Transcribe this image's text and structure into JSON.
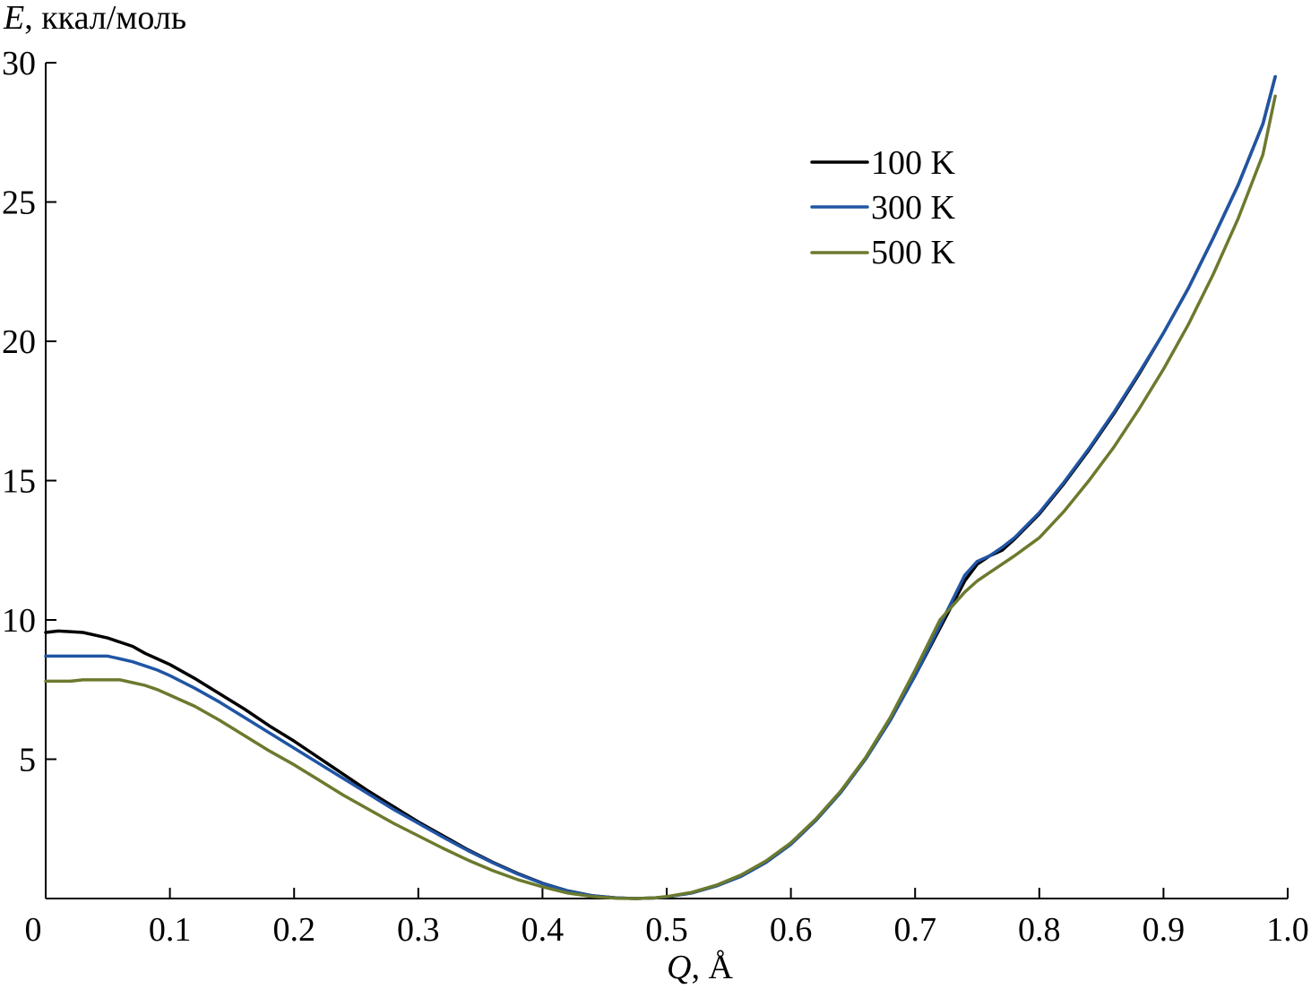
{
  "chart_data": {
    "type": "line",
    "ylabel_var": "E",
    "ylabel_unit": ", ккал/моль",
    "xlabel_var": "Q",
    "xlabel_unit": ", Å",
    "xlim": [
      0,
      1.0
    ],
    "ylim": [
      0,
      30
    ],
    "x_ticks": [
      0,
      0.1,
      0.2,
      0.3,
      0.4,
      0.5,
      0.6,
      0.7,
      0.8,
      0.9,
      1.0
    ],
    "x_tick_labels": [
      "0",
      "0.1",
      "0.2",
      "0.3",
      "0.4",
      "0.5",
      "0.6",
      "0.7",
      "0.8",
      "0.9",
      "1.0"
    ],
    "y_ticks": [
      5,
      10,
      15,
      20,
      25,
      30
    ],
    "y_tick_labels": [
      "5",
      "10",
      "15",
      "20",
      "25",
      "30"
    ],
    "grid": false,
    "legend_position": "top-right",
    "series": [
      {
        "name": "100 K",
        "color": "#000000",
        "x": [
          0.0,
          0.01,
          0.02,
          0.03,
          0.04,
          0.05,
          0.06,
          0.07,
          0.08,
          0.09,
          0.1,
          0.12,
          0.14,
          0.16,
          0.18,
          0.2,
          0.22,
          0.24,
          0.26,
          0.28,
          0.3,
          0.32,
          0.34,
          0.36,
          0.38,
          0.4,
          0.42,
          0.44,
          0.46,
          0.475,
          0.49,
          0.5,
          0.52,
          0.54,
          0.56,
          0.58,
          0.6,
          0.62,
          0.64,
          0.66,
          0.68,
          0.7,
          0.72,
          0.74,
          0.75,
          0.76,
          0.77,
          0.78,
          0.8,
          0.82,
          0.84,
          0.86,
          0.88,
          0.9,
          0.92,
          0.94,
          0.96,
          0.98,
          0.99
        ],
        "y": [
          9.55,
          9.6,
          9.58,
          9.55,
          9.45,
          9.35,
          9.2,
          9.05,
          8.8,
          8.6,
          8.4,
          7.9,
          7.35,
          6.8,
          6.2,
          5.65,
          5.05,
          4.45,
          3.85,
          3.3,
          2.75,
          2.25,
          1.75,
          1.3,
          0.9,
          0.55,
          0.28,
          0.1,
          0.02,
          0.0,
          0.02,
          0.06,
          0.2,
          0.45,
          0.8,
          1.3,
          1.95,
          2.8,
          3.8,
          5.0,
          6.4,
          8.0,
          9.7,
          11.4,
          12.0,
          12.3,
          12.5,
          12.9,
          13.8,
          14.9,
          16.1,
          17.4,
          18.8,
          20.3,
          21.9,
          23.7,
          25.6,
          27.8,
          29.5
        ]
      },
      {
        "name": "300 K",
        "color": "#2055a4",
        "x": [
          0.0,
          0.01,
          0.02,
          0.03,
          0.04,
          0.05,
          0.06,
          0.07,
          0.08,
          0.09,
          0.1,
          0.12,
          0.14,
          0.16,
          0.18,
          0.2,
          0.22,
          0.24,
          0.26,
          0.28,
          0.3,
          0.32,
          0.34,
          0.36,
          0.38,
          0.4,
          0.42,
          0.44,
          0.46,
          0.475,
          0.49,
          0.5,
          0.52,
          0.54,
          0.56,
          0.58,
          0.6,
          0.62,
          0.64,
          0.66,
          0.68,
          0.7,
          0.72,
          0.74,
          0.75,
          0.76,
          0.77,
          0.78,
          0.8,
          0.82,
          0.84,
          0.86,
          0.88,
          0.9,
          0.92,
          0.94,
          0.96,
          0.98,
          0.99
        ],
        "y": [
          8.7,
          8.7,
          8.7,
          8.7,
          8.7,
          8.7,
          8.6,
          8.5,
          8.35,
          8.2,
          8.0,
          7.55,
          7.05,
          6.5,
          5.95,
          5.4,
          4.85,
          4.3,
          3.75,
          3.2,
          2.7,
          2.2,
          1.72,
          1.28,
          0.88,
          0.54,
          0.27,
          0.1,
          0.02,
          0.0,
          0.02,
          0.06,
          0.2,
          0.45,
          0.8,
          1.3,
          1.95,
          2.8,
          3.8,
          5.0,
          6.4,
          8.0,
          9.8,
          11.6,
          12.1,
          12.3,
          12.6,
          12.95,
          13.85,
          14.95,
          16.15,
          17.45,
          18.85,
          20.3,
          21.9,
          23.7,
          25.6,
          27.8,
          29.5
        ]
      },
      {
        "name": "500 K",
        "color": "#6b7a2e",
        "x": [
          0.0,
          0.01,
          0.02,
          0.03,
          0.04,
          0.05,
          0.06,
          0.07,
          0.08,
          0.09,
          0.1,
          0.12,
          0.14,
          0.16,
          0.18,
          0.2,
          0.22,
          0.24,
          0.26,
          0.28,
          0.3,
          0.32,
          0.34,
          0.36,
          0.38,
          0.4,
          0.42,
          0.44,
          0.46,
          0.475,
          0.49,
          0.5,
          0.52,
          0.54,
          0.56,
          0.58,
          0.6,
          0.62,
          0.64,
          0.66,
          0.68,
          0.7,
          0.72,
          0.74,
          0.75,
          0.76,
          0.77,
          0.78,
          0.8,
          0.82,
          0.84,
          0.86,
          0.88,
          0.9,
          0.92,
          0.94,
          0.96,
          0.98,
          0.99
        ],
        "y": [
          7.8,
          7.8,
          7.8,
          7.85,
          7.85,
          7.85,
          7.85,
          7.75,
          7.65,
          7.5,
          7.3,
          6.9,
          6.4,
          5.85,
          5.3,
          4.8,
          4.25,
          3.7,
          3.2,
          2.7,
          2.25,
          1.8,
          1.38,
          1.0,
          0.68,
          0.42,
          0.2,
          0.07,
          0.01,
          0.0,
          0.02,
          0.07,
          0.22,
          0.48,
          0.85,
          1.35,
          2.0,
          2.85,
          3.85,
          5.05,
          6.5,
          8.2,
          10.0,
          11.0,
          11.4,
          11.7,
          12.0,
          12.3,
          12.95,
          13.9,
          15.0,
          16.2,
          17.55,
          19.0,
          20.6,
          22.4,
          24.4,
          26.7,
          28.8
        ]
      }
    ]
  }
}
